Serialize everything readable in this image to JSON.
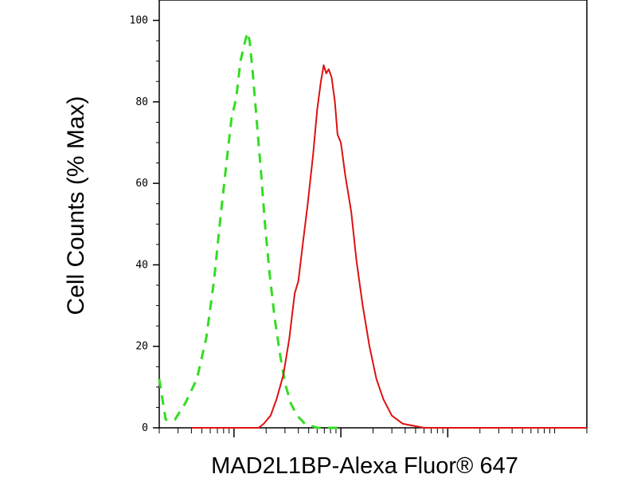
{
  "chart_data": {
    "type": "line",
    "xlabel": "MAD2L1BP-Alexa Fluor® 647",
    "ylabel": "Cell Counts (% Max)",
    "x_scale": "log",
    "x_major_ticks": [
      1000,
      10000,
      100000
    ],
    "xlim": [
      200,
      2000000
    ],
    "y_ticks": [
      0,
      20,
      40,
      60,
      80,
      100
    ],
    "ylim": [
      0,
      105
    ],
    "grid": false,
    "legend": "none",
    "series": [
      {
        "style": "dashed",
        "color": "#33dd22",
        "points": [
          [
            200,
            12
          ],
          [
            230,
            2
          ],
          [
            280,
            2
          ],
          [
            350,
            6
          ],
          [
            450,
            12
          ],
          [
            550,
            22
          ],
          [
            650,
            36
          ],
          [
            750,
            52
          ],
          [
            850,
            65
          ],
          [
            950,
            76
          ],
          [
            1050,
            81
          ],
          [
            1150,
            90
          ],
          [
            1250,
            94
          ],
          [
            1330,
            97
          ],
          [
            1400,
            95
          ],
          [
            1500,
            87
          ],
          [
            1650,
            74
          ],
          [
            1800,
            62
          ],
          [
            1950,
            50
          ],
          [
            2150,
            38
          ],
          [
            2400,
            27
          ],
          [
            2700,
            18
          ],
          [
            3000,
            11
          ],
          [
            3400,
            6
          ],
          [
            3900,
            3
          ],
          [
            4600,
            1
          ],
          [
            6000,
            0
          ],
          [
            10000,
            0
          ]
        ]
      },
      {
        "style": "solid",
        "color": "#dd1111",
        "points": [
          [
            400,
            0
          ],
          [
            1000,
            0
          ],
          [
            1700,
            0
          ],
          [
            1900,
            1
          ],
          [
            2200,
            3
          ],
          [
            2500,
            7
          ],
          [
            2900,
            13
          ],
          [
            3300,
            22
          ],
          [
            3700,
            33
          ],
          [
            4000,
            36
          ],
          [
            4400,
            45
          ],
          [
            4900,
            55
          ],
          [
            5500,
            67
          ],
          [
            6000,
            78
          ],
          [
            6500,
            85
          ],
          [
            6900,
            89
          ],
          [
            7300,
            87
          ],
          [
            7700,
            88
          ],
          [
            8200,
            86
          ],
          [
            8800,
            80
          ],
          [
            9300,
            72
          ],
          [
            10000,
            70
          ],
          [
            11000,
            62
          ],
          [
            12500,
            53
          ],
          [
            14000,
            41
          ],
          [
            16000,
            30
          ],
          [
            18500,
            20
          ],
          [
            21500,
            12
          ],
          [
            25000,
            7
          ],
          [
            30000,
            3
          ],
          [
            38000,
            1
          ],
          [
            60000,
            0
          ],
          [
            200000,
            0
          ],
          [
            2000000,
            0
          ]
        ]
      }
    ]
  }
}
